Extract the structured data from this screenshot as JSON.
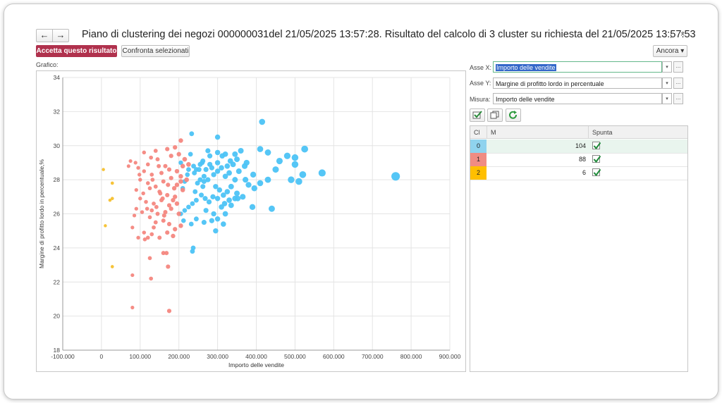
{
  "window": {
    "title": "Piano di clustering dei negozi 000000031del  21/05/2025 13:57:28. Risultato del calcolo di 3 cluster su richiesta del 21/05/2025 13:57:53",
    "back_label": "←",
    "forward_label": "→",
    "menu_icon": "⋮",
    "close_icon": "×"
  },
  "toolbar": {
    "accept_label": "Accetta questo risultato",
    "compare_label": "Confronta selezionati",
    "more_label": "Ancora ▾"
  },
  "chart_panel_label": "Grafico:",
  "settings": {
    "x_label": "Asse X:",
    "x_value": "Importo delle vendite",
    "y_label": "Asse Y:",
    "y_value": "Margine di profitto lordo in percentuale",
    "measure_label": "Misura:",
    "measure_value": "Importo delle vendite",
    "more_button": "...",
    "drop_icon": "▾"
  },
  "tools": [
    "check-all-icon",
    "copy-icon",
    "refresh-icon"
  ],
  "table": {
    "columns": [
      "Cl",
      "M",
      "Spunta"
    ],
    "rows": [
      {
        "cl": "0",
        "m": "104",
        "checked": true,
        "color": "#8fd3ee"
      },
      {
        "cl": "1",
        "m": "88",
        "checked": true,
        "color": "#f08c83"
      },
      {
        "cl": "2",
        "m": "6",
        "checked": true,
        "color": "#ffbf00"
      }
    ]
  },
  "chart_data": {
    "type": "scatter",
    "xlabel": "Importo delle vendite",
    "ylabel": "Margine di profitto lordo in percentuale,%",
    "xlim": [
      -100000,
      900000
    ],
    "ylim": [
      18,
      34
    ],
    "x_ticks": [
      "-100.000",
      "0",
      "100.000",
      "200.000",
      "300.000",
      "400.000",
      "500.000",
      "600.000",
      "700.000",
      "800.000",
      "900.000"
    ],
    "y_ticks": [
      "18",
      "20",
      "22",
      "24",
      "26",
      "28",
      "30",
      "32",
      "34"
    ],
    "grid": true,
    "series": [
      {
        "color": "#4cc3f5",
        "points": [
          [
            233000,
            30.7
          ],
          [
            300000,
            30.5
          ],
          [
            415000,
            31.4
          ],
          [
            410000,
            29.8
          ],
          [
            430000,
            29.6
          ],
          [
            480000,
            29.4
          ],
          [
            500000,
            29.3
          ],
          [
            525000,
            29.8
          ],
          [
            460000,
            29.1
          ],
          [
            450000,
            28.6
          ],
          [
            500000,
            28.9
          ],
          [
            520000,
            28.3
          ],
          [
            570000,
            28.4
          ],
          [
            760000,
            28.2
          ],
          [
            490000,
            28.0
          ],
          [
            510000,
            27.9
          ],
          [
            430000,
            28.0
          ],
          [
            410000,
            27.8
          ],
          [
            395000,
            27.5
          ],
          [
            380000,
            27.7
          ],
          [
            370000,
            28.8
          ],
          [
            360000,
            29.7
          ],
          [
            350000,
            29.2
          ],
          [
            320000,
            29.5
          ],
          [
            300000,
            29.6
          ],
          [
            280000,
            29.4
          ],
          [
            275000,
            29.7
          ],
          [
            262000,
            29.1
          ],
          [
            255000,
            28.9
          ],
          [
            245000,
            28.6
          ],
          [
            238000,
            28.8
          ],
          [
            230000,
            29.5
          ],
          [
            222000,
            28.3
          ],
          [
            215000,
            27.9
          ],
          [
            210000,
            27.5
          ],
          [
            205000,
            29.0
          ],
          [
            300000,
            28.5
          ],
          [
            310000,
            28.7
          ],
          [
            320000,
            28.2
          ],
          [
            330000,
            28.4
          ],
          [
            340000,
            28.9
          ],
          [
            345000,
            28.0
          ],
          [
            290000,
            28.3
          ],
          [
            285000,
            28.7
          ],
          [
            270000,
            28.6
          ],
          [
            265000,
            28.2
          ],
          [
            255000,
            28.0
          ],
          [
            248000,
            27.8
          ],
          [
            240000,
            28.4
          ],
          [
            225000,
            28.6
          ],
          [
            295000,
            27.6
          ],
          [
            305000,
            27.4
          ],
          [
            315000,
            27.1
          ],
          [
            325000,
            27.3
          ],
          [
            335000,
            27.6
          ],
          [
            350000,
            27.2
          ],
          [
            365000,
            27.0
          ],
          [
            345000,
            26.9
          ],
          [
            330000,
            26.8
          ],
          [
            318000,
            26.6
          ],
          [
            300000,
            26.9
          ],
          [
            288000,
            27.0
          ],
          [
            278000,
            26.7
          ],
          [
            268000,
            26.9
          ],
          [
            258000,
            27.1
          ],
          [
            245000,
            26.8
          ],
          [
            235000,
            26.6
          ],
          [
            225000,
            26.4
          ],
          [
            215000,
            26.2
          ],
          [
            205000,
            26.0
          ],
          [
            270000,
            26.2
          ],
          [
            290000,
            26.0
          ],
          [
            310000,
            26.4
          ],
          [
            320000,
            26.0
          ],
          [
            335000,
            26.5
          ],
          [
            390000,
            26.4
          ],
          [
            440000,
            26.3
          ],
          [
            300000,
            25.7
          ],
          [
            285000,
            25.6
          ],
          [
            265000,
            25.5
          ],
          [
            245000,
            25.7
          ],
          [
            232000,
            25.4
          ],
          [
            212000,
            25.6
          ],
          [
            315000,
            25.4
          ],
          [
            295000,
            25.0
          ],
          [
            237000,
            24.0
          ],
          [
            235000,
            23.8
          ],
          [
            352000,
            26.9
          ],
          [
            372000,
            28.0
          ],
          [
            392000,
            28.3
          ],
          [
            260000,
            29.0
          ],
          [
            275000,
            28.0
          ],
          [
            280000,
            28.9
          ],
          [
            300000,
            29.0
          ],
          [
            312000,
            29.4
          ],
          [
            333000,
            29.1
          ],
          [
            355000,
            28.5
          ],
          [
            375000,
            29.0
          ],
          [
            345000,
            29.5
          ],
          [
            325000,
            28.8
          ],
          [
            265000,
            27.9
          ],
          [
            252000,
            28.6
          ],
          [
            242000,
            27.3
          ],
          [
            262000,
            27.6
          ]
        ]
      },
      {
        "color": "#f4877f",
        "points": [
          [
            205000,
            30.3
          ],
          [
            190000,
            29.9
          ],
          [
            170000,
            29.8
          ],
          [
            140000,
            29.7
          ],
          [
            110000,
            29.6
          ],
          [
            75000,
            29.1
          ],
          [
            88000,
            29.0
          ],
          [
            70000,
            28.8
          ],
          [
            95000,
            28.7
          ],
          [
            120000,
            28.9
          ],
          [
            145000,
            29.2
          ],
          [
            165000,
            28.8
          ],
          [
            180000,
            29.4
          ],
          [
            200000,
            29.5
          ],
          [
            215000,
            29.2
          ],
          [
            225000,
            28.9
          ],
          [
            110000,
            28.5
          ],
          [
            130000,
            28.3
          ],
          [
            155000,
            28.4
          ],
          [
            175000,
            28.6
          ],
          [
            195000,
            28.5
          ],
          [
            205000,
            28.2
          ],
          [
            220000,
            28.0
          ],
          [
            100000,
            28.0
          ],
          [
            120000,
            27.8
          ],
          [
            140000,
            27.6
          ],
          [
            160000,
            27.9
          ],
          [
            180000,
            28.1
          ],
          [
            195000,
            27.7
          ],
          [
            210000,
            27.4
          ],
          [
            90000,
            27.4
          ],
          [
            108000,
            27.2
          ],
          [
            125000,
            27.5
          ],
          [
            150000,
            27.3
          ],
          [
            170000,
            27.1
          ],
          [
            190000,
            27.0
          ],
          [
            100000,
            26.9
          ],
          [
            115000,
            26.7
          ],
          [
            135000,
            26.6
          ],
          [
            155000,
            26.8
          ],
          [
            175000,
            26.5
          ],
          [
            195000,
            26.6
          ],
          [
            90000,
            26.3
          ],
          [
            105000,
            26.1
          ],
          [
            130000,
            26.2
          ],
          [
            145000,
            26.0
          ],
          [
            165000,
            26.1
          ],
          [
            180000,
            26.3
          ],
          [
            200000,
            26.0
          ],
          [
            85000,
            25.9
          ],
          [
            125000,
            25.8
          ],
          [
            140000,
            25.5
          ],
          [
            160000,
            25.6
          ],
          [
            175000,
            25.4
          ],
          [
            190000,
            25.1
          ],
          [
            205000,
            25.3
          ],
          [
            80000,
            25.2
          ],
          [
            110000,
            24.9
          ],
          [
            130000,
            24.8
          ],
          [
            150000,
            24.6
          ],
          [
            170000,
            24.9
          ],
          [
            185000,
            24.7
          ],
          [
            95000,
            24.6
          ],
          [
            112000,
            24.5
          ],
          [
            120000,
            24.6
          ],
          [
            160000,
            23.7
          ],
          [
            168000,
            23.7
          ],
          [
            125000,
            23.4
          ],
          [
            80000,
            22.4
          ],
          [
            172000,
            22.9
          ],
          [
            128000,
            22.2
          ],
          [
            80000,
            20.5
          ],
          [
            175000,
            20.3
          ],
          [
            188000,
            27.5
          ],
          [
            152000,
            27.2
          ],
          [
            132000,
            28.0
          ],
          [
            142000,
            26.4
          ],
          [
            158000,
            26.9
          ],
          [
            172000,
            27.7
          ],
          [
            98000,
            28.3
          ],
          [
            118000,
            26.3
          ],
          [
            135000,
            25.2
          ],
          [
            185000,
            26.8
          ],
          [
            205000,
            27.9
          ],
          [
            148000,
            28.8
          ],
          [
            128000,
            29.3
          ],
          [
            162000,
            25.9
          ],
          [
            210000,
            28.8
          ]
        ]
      },
      {
        "color": "#f6c02e",
        "points": [
          [
            5000,
            28.6
          ],
          [
            28000,
            27.8
          ],
          [
            22000,
            26.8
          ],
          [
            28000,
            26.9
          ],
          [
            10000,
            25.3
          ],
          [
            28000,
            22.9
          ]
        ]
      }
    ]
  }
}
